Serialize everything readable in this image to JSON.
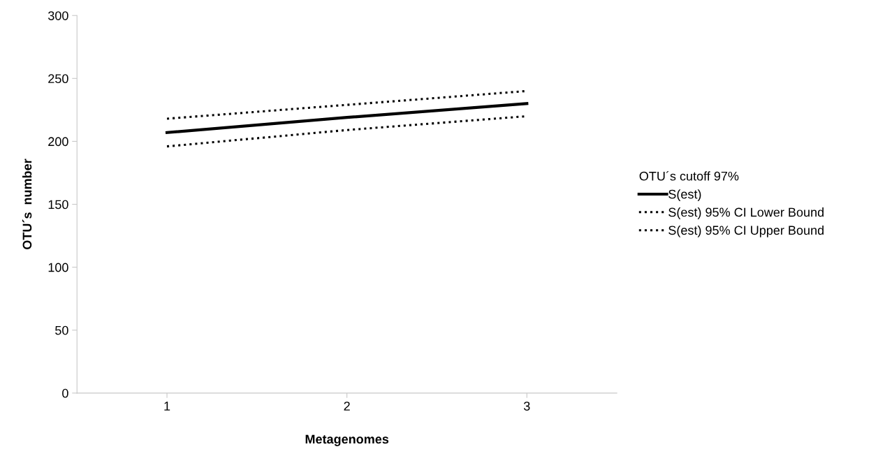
{
  "chart_data": {
    "type": "line",
    "xlabel": "Metagenomes",
    "ylabel": "OTU´s  number",
    "legend_title": "OTU´s cutoff 97%",
    "categories": [
      "1",
      "2",
      "3"
    ],
    "series": [
      {
        "name": "S(est)",
        "color": "#000000",
        "values": [
          207,
          219,
          230
        ],
        "line_style": "solid"
      },
      {
        "name": "S(est) 95% CI Lower Bound",
        "color": "#000000",
        "values": [
          196,
          209,
          220
        ],
        "line_style": "dotted"
      },
      {
        "name": "S(est) 95% CI Upper Bound",
        "color": "#000000",
        "values": [
          218,
          229,
          240
        ],
        "line_style": "dotted"
      }
    ],
    "ylim": [
      0,
      300
    ],
    "yticks": [
      0,
      50,
      100,
      150,
      200,
      250,
      300
    ],
    "grid": false,
    "legend": "right",
    "marker": "none"
  }
}
